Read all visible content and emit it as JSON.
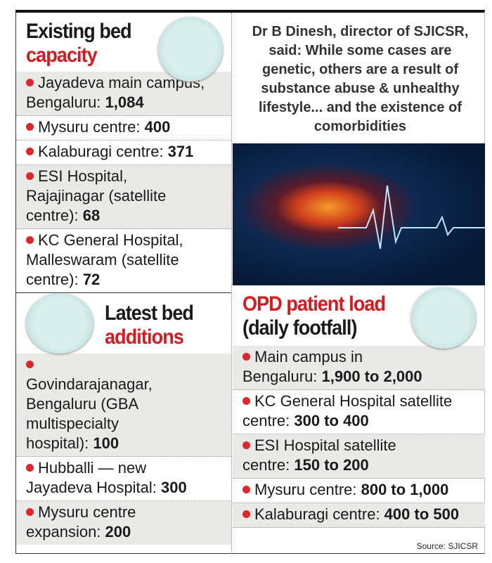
{
  "existing": {
    "title_line1": "Existing bed",
    "title_line2": "capacity",
    "icon": "hospital-beds-icon",
    "items": [
      {
        "label": "Jayadeva main campus, Bengaluru: ",
        "value": "1,084"
      },
      {
        "label": "Mysuru centre: ",
        "value": "400"
      },
      {
        "label": "Kalaburagi centre: ",
        "value": "371"
      },
      {
        "label": "ESI Hospital, Rajajinagar (satellite centre): ",
        "value": "68"
      },
      {
        "label": "KC General Hospital, Malleswaram (satellite centre): ",
        "value": "72"
      }
    ]
  },
  "additions": {
    "title_line1": "Latest bed",
    "title_line2": "additions",
    "icon": "hospital-construction-icon",
    "items": [
      {
        "label": "Govindarajanagar, Bengaluru (GBA multispecialty hospital): ",
        "value": "100"
      },
      {
        "label": "Hubballi — new Jayadeva Hospital: ",
        "value": "300"
      },
      {
        "label": "Mysuru centre expansion: ",
        "value": "200"
      }
    ]
  },
  "quote": "Dr B Dinesh, director of SJICSR, said: While some cases are genetic, others are a result of substance abuse & unhealthy lifestyle... and the existence of comorbidities",
  "opd": {
    "title_line1": "OPD patient load",
    "title_line2": "(daily footfall)",
    "icon": "opd-queue-icon",
    "items": [
      {
        "label": "Main campus in Bengaluru: ",
        "value": "1,900 to 2,000"
      },
      {
        "label": "KC General Hospital satellite centre: ",
        "value": "300 to 400"
      },
      {
        "label": "ESI Hospital satellite centre: ",
        "value": "150 to 200"
      },
      {
        "label": "Mysuru centre: ",
        "value": "800 to 1,000"
      },
      {
        "label": "Kalaburagi centre: ",
        "value": "400 to 500"
      }
    ]
  },
  "source": "Source: SJICSR",
  "colors": {
    "accent": "#d71920",
    "shade": "#e9e9e7"
  }
}
